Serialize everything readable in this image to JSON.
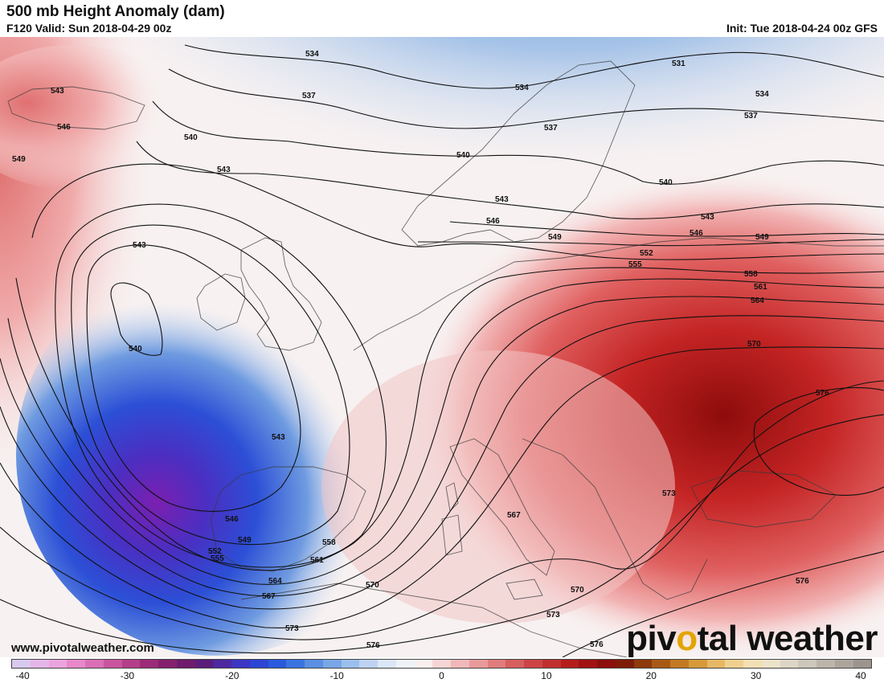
{
  "header": {
    "title": "500 mb Height Anomaly (dam)",
    "valid": "F120 Valid: Sun 2018-04-29 00z",
    "init": "Init: Tue 2018-04-24 00z GFS"
  },
  "footer": {
    "website": "www.pivotalweather.com",
    "brand_pre": "piv",
    "brand_dot": "o",
    "brand_post": "tal weather"
  },
  "contours": {
    "labels": [
      "531",
      "534",
      "537",
      "540",
      "543",
      "546",
      "549",
      "552",
      "555",
      "558",
      "561",
      "564",
      "567",
      "570",
      "573",
      "576"
    ]
  },
  "colorbar": {
    "tick_labels": [
      "-40",
      "-30",
      "-20",
      "-10",
      "0",
      "10",
      "20",
      "30",
      "40"
    ],
    "colors": [
      "#d9c9ee",
      "#e4b6e8",
      "#eca3dd",
      "#e888c9",
      "#da6fb5",
      "#c9559e",
      "#b43e88",
      "#9c2b78",
      "#84216f",
      "#6f1a6c",
      "#5a1d7a",
      "#4f28a0",
      "#3c36c4",
      "#2d45d6",
      "#2a59dc",
      "#3a74df",
      "#5a8fe1",
      "#79a7e6",
      "#9bbfec",
      "#bdd3f1",
      "#dbe6f6",
      "#eef3fa",
      "#fbeeee",
      "#f6d5d5",
      "#f0b8b8",
      "#e99a9a",
      "#e07c7c",
      "#d65f5f",
      "#cc4545",
      "#c22f2f",
      "#b51d1d",
      "#a11313",
      "#8c0e0e",
      "#7d1b08",
      "#8f3a0c",
      "#a85a14",
      "#c27a22",
      "#d69a3a",
      "#e6b865",
      "#efd08f",
      "#f3dfb3",
      "#ece3c9",
      "#ddd6c7",
      "#cdc6ba",
      "#bdb5aa",
      "#ada59c",
      "#9c958e"
    ]
  }
}
